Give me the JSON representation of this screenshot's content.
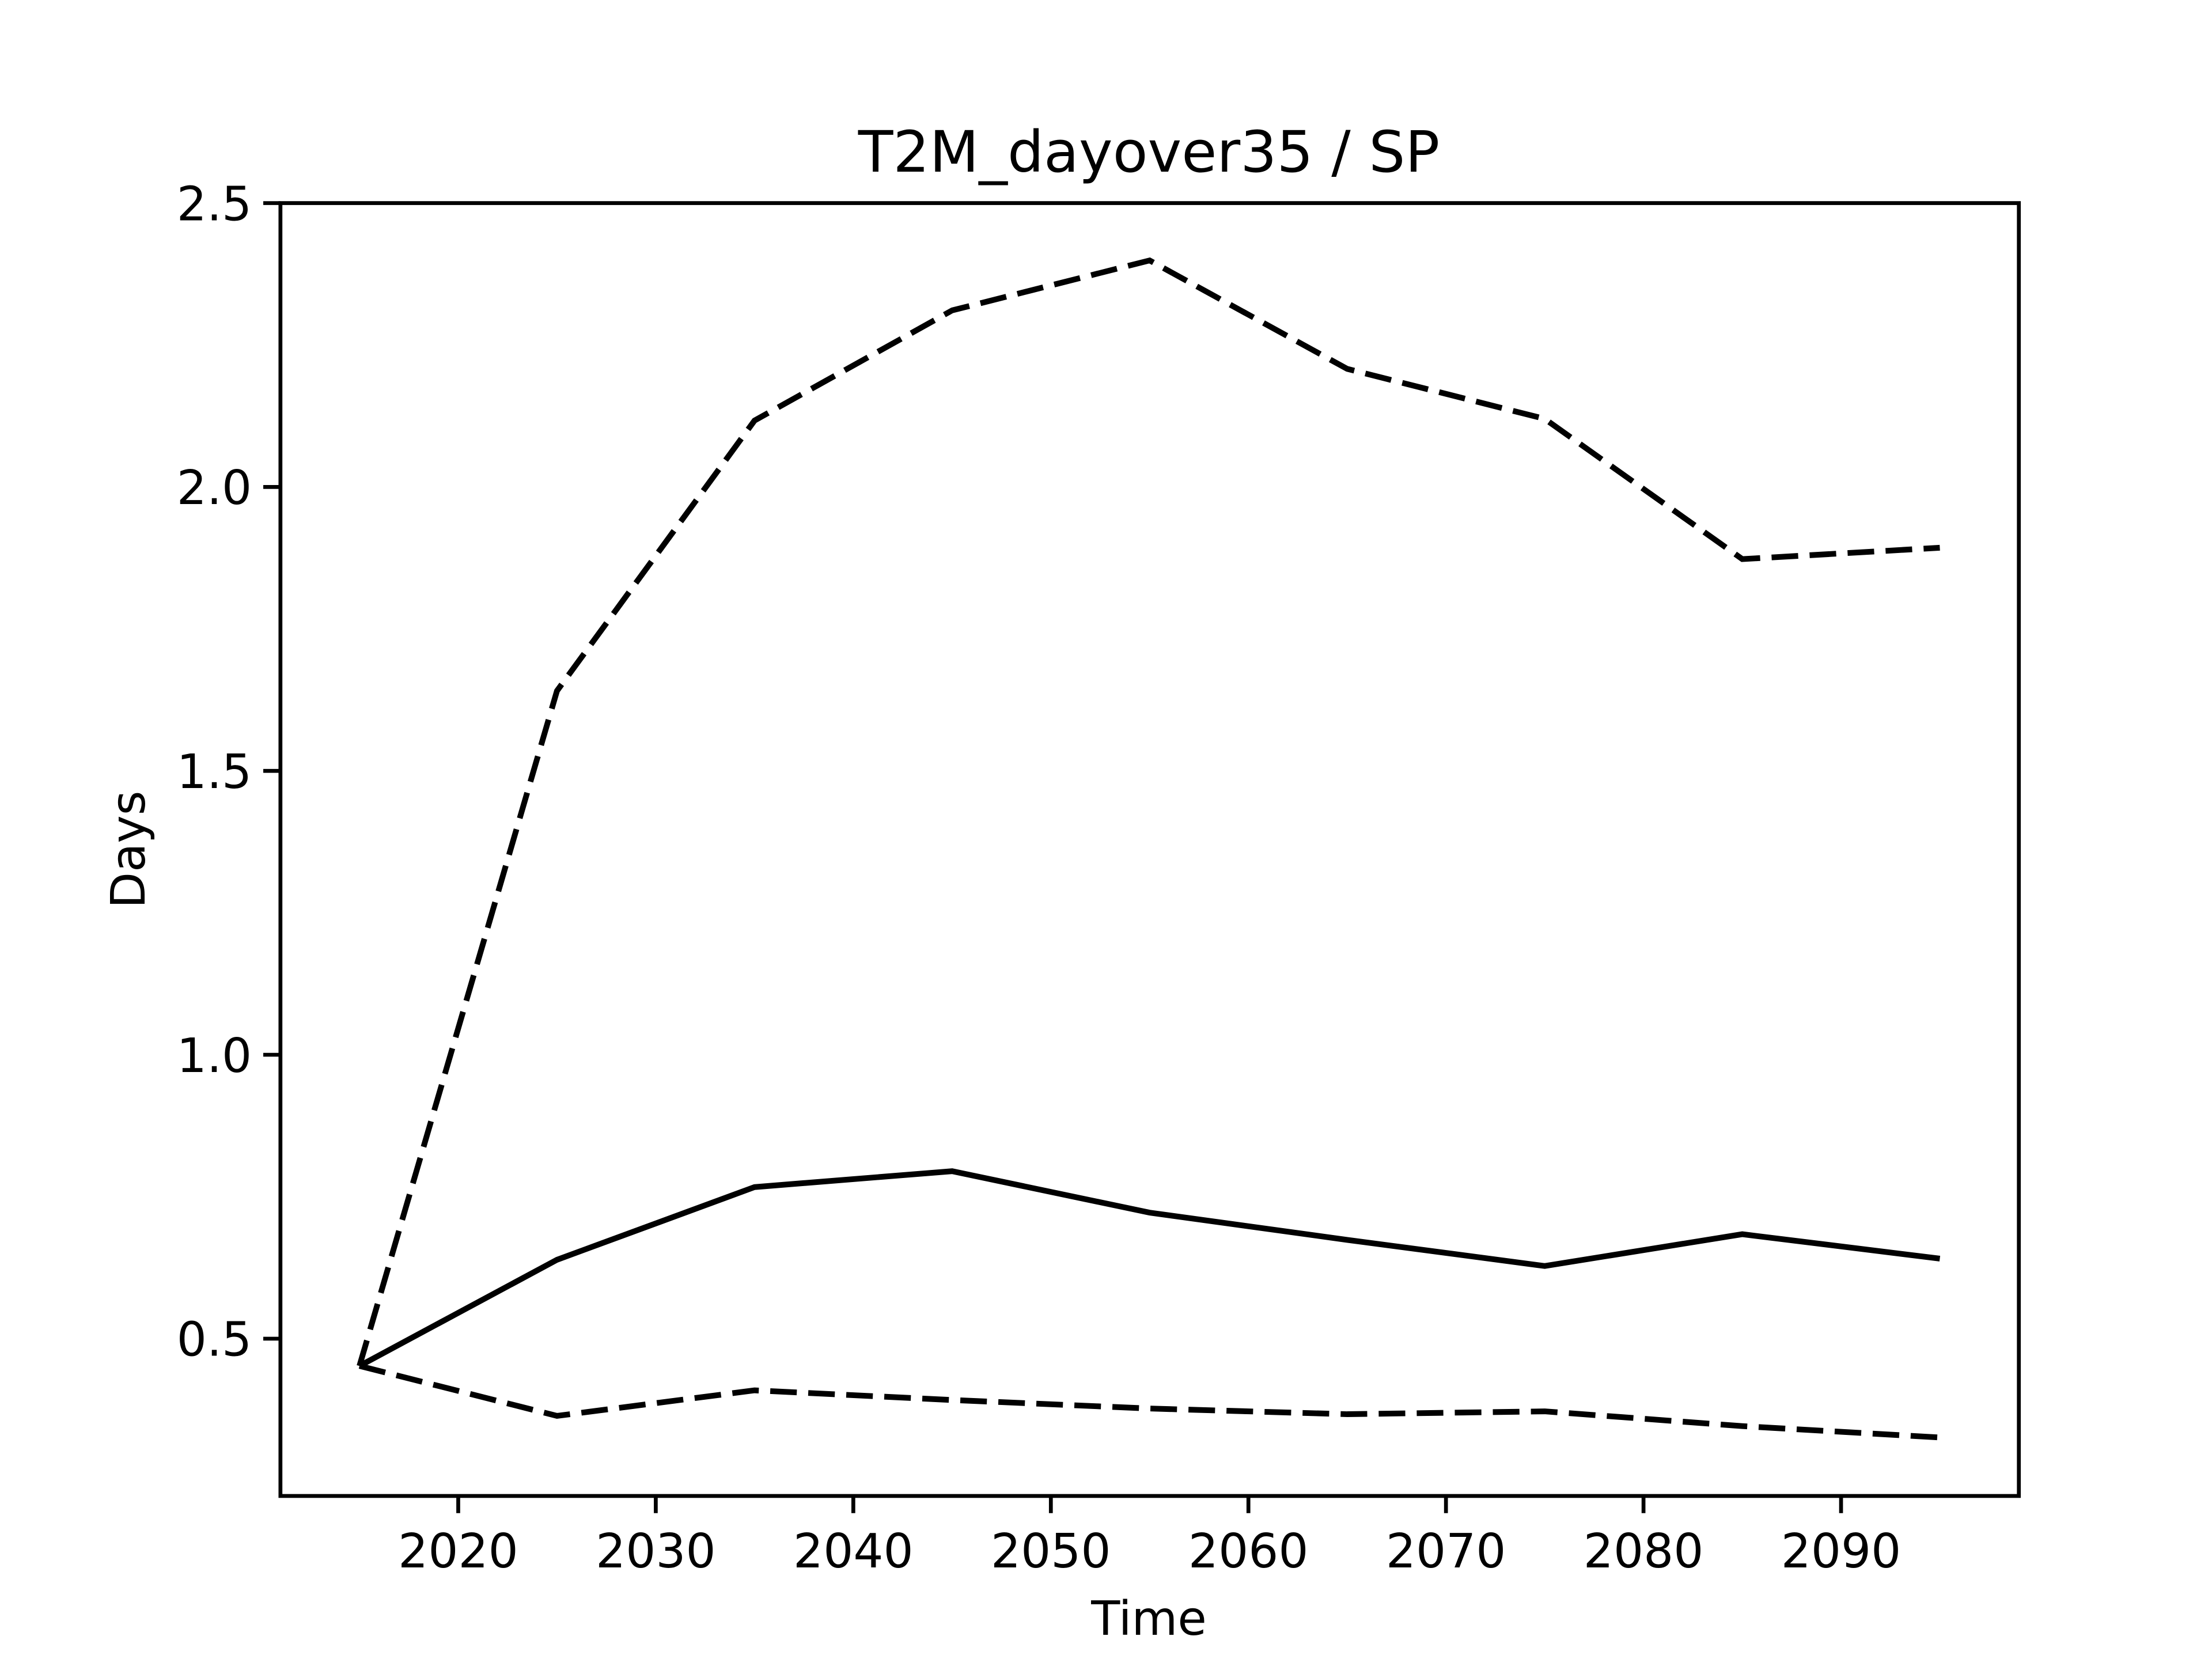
{
  "chart_data": {
    "type": "line",
    "title": "T2M_dayover35 / SP",
    "xlabel": "Time",
    "ylabel": "Days",
    "x": [
      2015,
      2025,
      2035,
      2045,
      2055,
      2065,
      2075,
      2085,
      2095
    ],
    "series": [
      {
        "color": "#000000",
        "dashed": false,
        "values": [
          0.452,
          0.639,
          0.767,
          0.795,
          0.722,
          0.674,
          0.628,
          0.684,
          0.641
        ]
      },
      {
        "color": "#000000",
        "dashed": true,
        "values": [
          0.452,
          1.641,
          2.117,
          2.311,
          2.399,
          2.208,
          2.12,
          1.873,
          1.893
        ]
      },
      {
        "color": "#000000",
        "dashed": true,
        "values": [
          0.452,
          0.364,
          0.409,
          0.392,
          0.377,
          0.367,
          0.372,
          0.346,
          0.326
        ]
      }
    ],
    "xlim": [
      2011,
      2099
    ],
    "xticks": [
      2020,
      2030,
      2040,
      2050,
      2060,
      2070,
      2080,
      2090
    ],
    "ylim": [
      0.223,
      2.5
    ],
    "yticks": [
      0.5,
      {
        "value": 1,
        "label": "1.0"
      },
      1.5,
      {
        "value": 2,
        "label": "2.0"
      },
      2.5
    ],
    "grid": false
  }
}
